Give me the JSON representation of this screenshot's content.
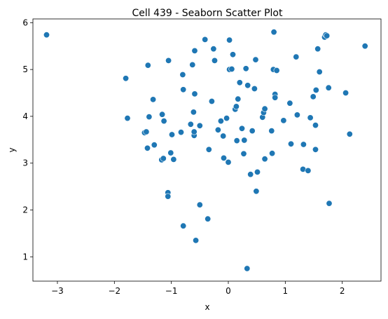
{
  "chart_data": {
    "type": "scatter",
    "title": "Cell 439 - Seaborn Scatter Plot",
    "xlabel": "x",
    "ylabel": "y",
    "xlim": [
      -3.43,
      2.68
    ],
    "ylim": [
      0.48,
      6.08
    ],
    "xticks": [
      -3,
      -2,
      -1,
      0,
      1,
      2
    ],
    "yticks": [
      1,
      2,
      3,
      4,
      5,
      6
    ],
    "xtick_labels": [
      "−3",
      "−2",
      "−1",
      "0",
      "1",
      "2"
    ],
    "ytick_labels": [
      "1",
      "2",
      "3",
      "4",
      "5",
      "6"
    ],
    "grid": false,
    "marker_color": "#1f77b4",
    "marker_edge": "#ffffff",
    "points": [
      [
        -3.19,
        5.74
      ],
      [
        -1.8,
        4.81
      ],
      [
        -1.77,
        3.96
      ],
      [
        -1.47,
        3.65
      ],
      [
        -1.44,
        3.67
      ],
      [
        -1.42,
        3.32
      ],
      [
        -1.41,
        5.09
      ],
      [
        -1.39,
        3.99
      ],
      [
        -1.32,
        4.36
      ],
      [
        -1.3,
        3.39
      ],
      [
        -1.17,
        3.07
      ],
      [
        -1.16,
        4.04
      ],
      [
        -1.14,
        3.1
      ],
      [
        -1.13,
        3.9
      ],
      [
        -1.06,
        2.37
      ],
      [
        -1.06,
        2.29
      ],
      [
        -1.05,
        5.19
      ],
      [
        -1.01,
        3.22
      ],
      [
        -0.99,
        3.61
      ],
      [
        -0.96,
        3.08
      ],
      [
        -0.83,
        3.66
      ],
      [
        -0.8,
        4.89
      ],
      [
        -0.79,
        4.57
      ],
      [
        -0.79,
        1.66
      ],
      [
        -0.66,
        3.83
      ],
      [
        -0.63,
        5.1
      ],
      [
        -0.61,
        4.09
      ],
      [
        -0.6,
        3.59
      ],
      [
        -0.6,
        3.67
      ],
      [
        -0.59,
        4.48
      ],
      [
        -0.59,
        5.4
      ],
      [
        -0.57,
        1.35
      ],
      [
        -0.5,
        3.8
      ],
      [
        -0.5,
        2.11
      ],
      [
        -0.41,
        5.64
      ],
      [
        -0.36,
        1.81
      ],
      [
        -0.34,
        3.29
      ],
      [
        -0.29,
        4.32
      ],
      [
        -0.26,
        5.44
      ],
      [
        -0.24,
        5.19
      ],
      [
        -0.18,
        3.71
      ],
      [
        -0.13,
        3.9
      ],
      [
        -0.09,
        3.58
      ],
      [
        -0.08,
        3.11
      ],
      [
        -0.03,
        3.96
      ],
      [
        0.0,
        3.02
      ],
      [
        0.02,
        5.0
      ],
      [
        0.02,
        5.63
      ],
      [
        0.06,
        5.01
      ],
      [
        0.08,
        5.32
      ],
      [
        0.12,
        4.15
      ],
      [
        0.14,
        4.21
      ],
      [
        0.15,
        3.48
      ],
      [
        0.17,
        4.37
      ],
      [
        0.2,
        4.72
      ],
      [
        0.24,
        3.74
      ],
      [
        0.27,
        3.2
      ],
      [
        0.28,
        3.49
      ],
      [
        0.31,
        5.02
      ],
      [
        0.33,
        0.75
      ],
      [
        0.34,
        4.66
      ],
      [
        0.39,
        2.76
      ],
      [
        0.42,
        3.69
      ],
      [
        0.46,
        4.59
      ],
      [
        0.48,
        5.21
      ],
      [
        0.49,
        2.4
      ],
      [
        0.51,
        2.81
      ],
      [
        0.6,
        3.98
      ],
      [
        0.62,
        4.08
      ],
      [
        0.64,
        4.16
      ],
      [
        0.64,
        3.09
      ],
      [
        0.76,
        3.69
      ],
      [
        0.77,
        3.21
      ],
      [
        0.79,
        5.0
      ],
      [
        0.8,
        5.8
      ],
      [
        0.82,
        4.47
      ],
      [
        0.82,
        4.4
      ],
      [
        0.85,
        4.98
      ],
      [
        0.97,
        3.91
      ],
      [
        1.08,
        4.28
      ],
      [
        1.1,
        3.41
      ],
      [
        1.19,
        5.27
      ],
      [
        1.21,
        4.03
      ],
      [
        1.31,
        2.87
      ],
      [
        1.32,
        3.4
      ],
      [
        1.4,
        2.84
      ],
      [
        1.44,
        3.97
      ],
      [
        1.49,
        4.42
      ],
      [
        1.53,
        3.81
      ],
      [
        1.53,
        3.29
      ],
      [
        1.54,
        4.56
      ],
      [
        1.57,
        5.44
      ],
      [
        1.6,
        4.95
      ],
      [
        1.69,
        5.69
      ],
      [
        1.71,
        5.74
      ],
      [
        1.73,
        5.72
      ],
      [
        1.76,
        4.61
      ],
      [
        1.77,
        2.14
      ],
      [
        2.06,
        4.5
      ],
      [
        2.13,
        3.62
      ],
      [
        2.4,
        5.5
      ]
    ]
  }
}
